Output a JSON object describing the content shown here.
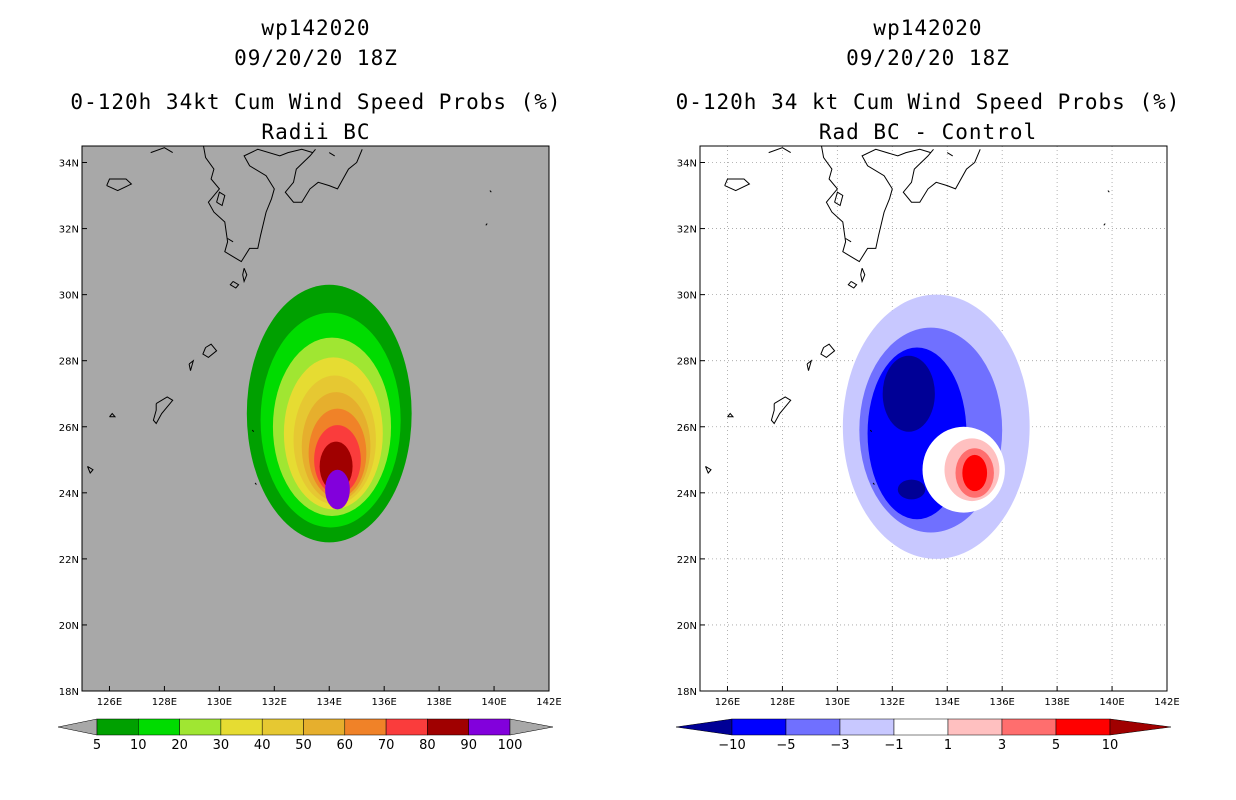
{
  "chart_data": [
    {
      "type": "heatmap",
      "title_lines": [
        "wp142020",
        "09/20/20 18Z",
        "0-120h 34kt Cum Wind Speed Probs (%)",
        "Radii BC"
      ],
      "xlabel": "",
      "ylabel": "",
      "xlim": [
        125,
        142
      ],
      "ylim": [
        18,
        34.5
      ],
      "x_ticks": [
        "126E",
        "128E",
        "130E",
        "132E",
        "134E",
        "136E",
        "138E",
        "140E",
        "142E"
      ],
      "y_ticks": [
        "18N",
        "20N",
        "22N",
        "24N",
        "26N",
        "28N",
        "30N",
        "32N",
        "34N"
      ],
      "background_color": "#a8a8a8",
      "grid": false,
      "colorbar_levels": [
        "5",
        "10",
        "20",
        "30",
        "40",
        "50",
        "60",
        "70",
        "80",
        "90",
        "100"
      ],
      "colorbar_colors": [
        "#00a000",
        "#00dc00",
        "#a0e632",
        "#e6dc32",
        "#e6c832",
        "#e6af2d",
        "#f08228",
        "#fa3c3c",
        "#a00000",
        "#8200dc"
      ],
      "contours": [
        {
          "level": 5,
          "color": "#00a000",
          "cx": 134.0,
          "cy": 26.4,
          "rx": 3.0,
          "ry": 3.9
        },
        {
          "level": 10,
          "color": "#00dc00",
          "cx": 134.05,
          "cy": 26.2,
          "rx": 2.55,
          "ry": 3.25
        },
        {
          "level": 20,
          "color": "#a0e632",
          "cx": 134.1,
          "cy": 26.0,
          "rx": 2.15,
          "ry": 2.7
        },
        {
          "level": 30,
          "color": "#e6dc32",
          "cx": 134.15,
          "cy": 25.8,
          "rx": 1.8,
          "ry": 2.3
        },
        {
          "level": 40,
          "color": "#e6c832",
          "cx": 134.2,
          "cy": 25.6,
          "rx": 1.5,
          "ry": 1.95
        },
        {
          "level": 50,
          "color": "#e6af2d",
          "cx": 134.25,
          "cy": 25.4,
          "rx": 1.25,
          "ry": 1.65
        },
        {
          "level": 60,
          "color": "#f08228",
          "cx": 134.3,
          "cy": 25.2,
          "rx": 1.05,
          "ry": 1.35
        },
        {
          "level": 70,
          "color": "#fa3c3c",
          "cx": 134.3,
          "cy": 25.0,
          "rx": 0.85,
          "ry": 1.05
        },
        {
          "level": 80,
          "color": "#a00000",
          "cx": 134.25,
          "cy": 24.8,
          "rx": 0.6,
          "ry": 0.75
        },
        {
          "level": 90,
          "color": "#8200dc",
          "cx": 134.3,
          "cy": 24.1,
          "rx": 0.45,
          "ry": 0.6
        }
      ]
    },
    {
      "type": "heatmap",
      "title_lines": [
        "wp142020",
        "09/20/20 18Z",
        "0-120h 34 kt Cum Wind Speed Probs (%)",
        "Rad BC - Control"
      ],
      "xlabel": "",
      "ylabel": "",
      "xlim": [
        125,
        142
      ],
      "ylim": [
        18,
        34.5
      ],
      "x_ticks": [
        "126E",
        "128E",
        "130E",
        "132E",
        "134E",
        "136E",
        "138E",
        "140E",
        "142E"
      ],
      "y_ticks": [
        "18N",
        "20N",
        "22N",
        "24N",
        "26N",
        "28N",
        "30N",
        "32N",
        "34N"
      ],
      "background_color": "#ffffff",
      "grid": true,
      "colorbar_levels": [
        "-10",
        "-5",
        "-3",
        "-1",
        "1",
        "3",
        "5",
        "10"
      ],
      "colorbar_colors": [
        "#000096",
        "#0000ff",
        "#7070ff",
        "#c8c8ff",
        "#ffffff",
        "#ffc0c0",
        "#ff6e6e",
        "#ff0000",
        "#a00000"
      ],
      "contours": [
        {
          "level": -1,
          "color": "#c8c8ff",
          "cx": 133.6,
          "cy": 26.0,
          "rx": 3.4,
          "ry": 4.0
        },
        {
          "level": -3,
          "color": "#7070ff",
          "cx": 133.4,
          "cy": 25.9,
          "rx": 2.6,
          "ry": 3.1
        },
        {
          "level": -5,
          "color": "#0000ff",
          "cx": 132.9,
          "cy": 25.8,
          "rx": 1.8,
          "ry": 2.6
        },
        {
          "level": -10,
          "color": "#000096",
          "cx": 132.6,
          "cy": 27.0,
          "rx": 0.95,
          "ry": 1.15
        },
        {
          "level": -10,
          "color": "#000096",
          "cx": 132.7,
          "cy": 24.1,
          "rx": 0.5,
          "ry": 0.3
        },
        {
          "level": 1,
          "color": "#ffffff",
          "cx": 134.6,
          "cy": 24.7,
          "rx": 1.5,
          "ry": 1.3
        },
        {
          "level": 3,
          "color": "#ffc0c0",
          "cx": 134.9,
          "cy": 24.7,
          "rx": 1.0,
          "ry": 0.95
        },
        {
          "level": 5,
          "color": "#ff6e6e",
          "cx": 135.0,
          "cy": 24.6,
          "rx": 0.7,
          "ry": 0.75
        },
        {
          "level": 10,
          "color": "#ff0000",
          "cx": 135.0,
          "cy": 24.6,
          "rx": 0.45,
          "ry": 0.55
        }
      ]
    }
  ]
}
